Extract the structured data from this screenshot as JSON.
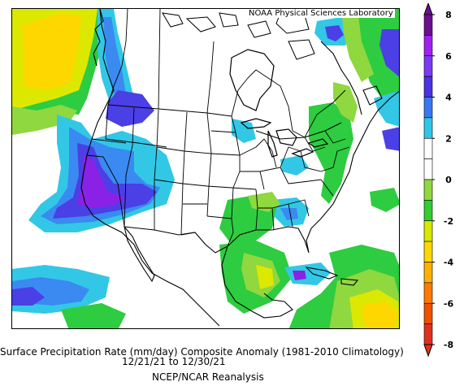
{
  "credit": "NOAA Physical Sciences Laboratory",
  "caption": {
    "title": "Surface Precipitation Rate (mm/day) Composite Anomaly (1981-2010 Climatology)",
    "dates": "12/21/21  to 12/30/21",
    "source": "NCEP/NCAR Reanalysis"
  },
  "colorbar": {
    "ticks": [
      "8",
      "6",
      "4",
      "2",
      "0",
      "-2",
      "-4",
      "-6",
      "-8"
    ],
    "colors": [
      "#6b0f8f",
      "#a020f0",
      "#7a3af2",
      "#4a33e0",
      "#3a78f0",
      "#2ec7e8",
      "#ffffff",
      "#ffffff",
      "#8fd840",
      "#33cc33",
      "#d8e800",
      "#ffd700",
      "#ffb000",
      "#ff7a00",
      "#f05000",
      "#e03020"
    ]
  },
  "layers": {
    "colors": {
      "wet_strong": "#8a22e6",
      "wet_moderate": "#4b3fe6",
      "wet_light": "#3a8af2",
      "wet_slight": "#33c7e6",
      "dry_slight": "#8fd840",
      "dry_light": "#2ecc40",
      "dry_moderate": "#dde800",
      "dry_strong": "#ffd700",
      "dry_severe": "#ff9f00"
    }
  }
}
